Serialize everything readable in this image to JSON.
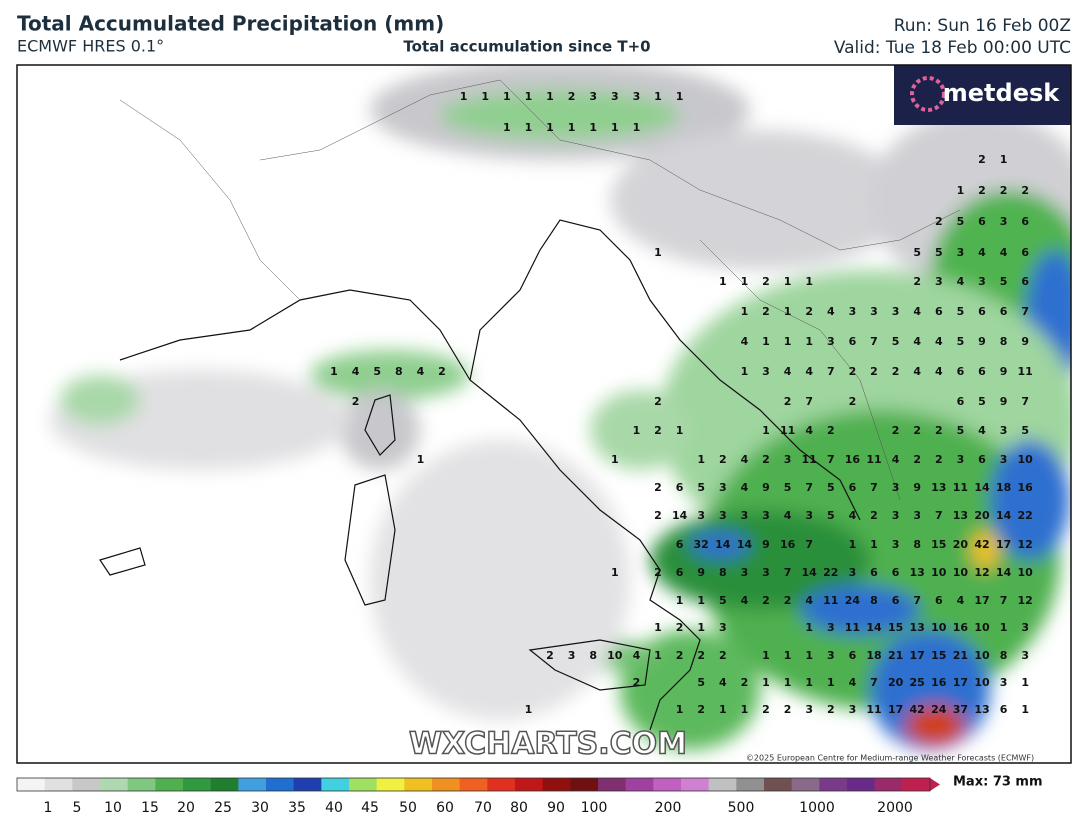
{
  "header": {
    "title": "Total Accumulated Precipitation (mm)",
    "model": "ECMWF HRES 0.1°",
    "subtitle": "Total accumulation since T+0",
    "run": "Run: Sun 16 Feb 00Z",
    "valid": "Valid: Tue 18 Feb 00:00 UTC"
  },
  "logo": "metdesk",
  "watermark": "WXCHARTS.COM",
  "copyright": "©2025 European Centre for Medium-range Weather Forecasts (ECMWF)",
  "max_label": "Max: 73 mm",
  "legend_ticks": [
    1,
    5,
    10,
    15,
    20,
    25,
    30,
    35,
    40,
    45,
    50,
    60,
    70,
    80,
    90,
    100,
    200,
    500,
    1000,
    2000
  ],
  "map_rows": [
    [
      null,
      null,
      null,
      null,
      null,
      null,
      1,
      1,
      1,
      1,
      1,
      2,
      3,
      3,
      3,
      1,
      1,
      null,
      null,
      null,
      null,
      null,
      null,
      null,
      null,
      null,
      null,
      null,
      null,
      null,
      null,
      null,
      null
    ],
    [
      null,
      null,
      null,
      null,
      null,
      null,
      null,
      null,
      1,
      1,
      1,
      1,
      1,
      1,
      1,
      null,
      null,
      null,
      null,
      null,
      null,
      null,
      null,
      null,
      null,
      null,
      null,
      null,
      null,
      null,
      null,
      null,
      null
    ],
    [
      null,
      null,
      null,
      null,
      null,
      null,
      null,
      null,
      null,
      null,
      null,
      null,
      null,
      null,
      null,
      null,
      null,
      null,
      null,
      null,
      null,
      null,
      null,
      null,
      null,
      null,
      null,
      null,
      null,
      null,
      2,
      1,
      null
    ],
    [
      null,
      null,
      null,
      null,
      null,
      null,
      null,
      null,
      null,
      null,
      null,
      null,
      null,
      null,
      null,
      null,
      null,
      null,
      null,
      null,
      null,
      null,
      null,
      null,
      null,
      null,
      null,
      null,
      null,
      1,
      2,
      2,
      2
    ],
    [
      null,
      null,
      null,
      null,
      null,
      null,
      null,
      null,
      null,
      null,
      null,
      null,
      null,
      null,
      null,
      null,
      null,
      null,
      null,
      null,
      null,
      null,
      null,
      null,
      null,
      null,
      null,
      null,
      2,
      5,
      6,
      3,
      6
    ],
    [
      null,
      null,
      null,
      null,
      null,
      null,
      null,
      null,
      null,
      null,
      null,
      null,
      null,
      null,
      null,
      1,
      null,
      null,
      null,
      null,
      null,
      null,
      null,
      null,
      null,
      null,
      null,
      5,
      5,
      3,
      4,
      4,
      6
    ],
    [
      null,
      null,
      null,
      null,
      null,
      null,
      null,
      null,
      null,
      null,
      null,
      null,
      null,
      null,
      null,
      null,
      null,
      null,
      1,
      1,
      2,
      1,
      1,
      null,
      null,
      null,
      null,
      2,
      3,
      4,
      3,
      5,
      6
    ],
    [
      null,
      null,
      null,
      null,
      null,
      null,
      null,
      null,
      null,
      null,
      null,
      null,
      null,
      null,
      null,
      null,
      null,
      null,
      null,
      1,
      2,
      1,
      2,
      4,
      3,
      3,
      3,
      4,
      6,
      5,
      6,
      6,
      7
    ],
    [
      null,
      null,
      null,
      null,
      null,
      null,
      null,
      null,
      null,
      null,
      null,
      null,
      null,
      null,
      null,
      null,
      null,
      null,
      null,
      4,
      1,
      1,
      1,
      3,
      6,
      7,
      5,
      4,
      4,
      5,
      9,
      8,
      9
    ],
    [
      1,
      4,
      5,
      8,
      4,
      2,
      null,
      null,
      null,
      null,
      null,
      null,
      null,
      null,
      null,
      null,
      null,
      null,
      null,
      1,
      3,
      4,
      4,
      7,
      2,
      2,
      2,
      4,
      4,
      6,
      6,
      9,
      11
    ],
    [
      null,
      2,
      null,
      null,
      null,
      null,
      null,
      null,
      null,
      null,
      null,
      null,
      null,
      null,
      null,
      2,
      null,
      null,
      null,
      null,
      null,
      2,
      7,
      null,
      2,
      null,
      null,
      null,
      null,
      6,
      5,
      9,
      7
    ],
    [
      null,
      null,
      null,
      null,
      null,
      null,
      null,
      null,
      null,
      null,
      null,
      null,
      null,
      null,
      1,
      2,
      1,
      null,
      null,
      null,
      1,
      11,
      4,
      2,
      null,
      null,
      2,
      2,
      2,
      5,
      4,
      3,
      5
    ],
    [
      null,
      null,
      null,
      null,
      1,
      null,
      null,
      null,
      null,
      null,
      null,
      null,
      null,
      1,
      null,
      null,
      null,
      1,
      2,
      4,
      2,
      3,
      11,
      7,
      16,
      11,
      4,
      2,
      2,
      3,
      6,
      3,
      10
    ],
    [
      null,
      null,
      null,
      null,
      null,
      null,
      null,
      null,
      null,
      null,
      null,
      null,
      null,
      null,
      null,
      2,
      6,
      5,
      3,
      4,
      9,
      5,
      7,
      5,
      6,
      7,
      3,
      9,
      13,
      11,
      14,
      18,
      16
    ],
    [
      null,
      null,
      null,
      null,
      null,
      null,
      null,
      null,
      null,
      null,
      null,
      null,
      null,
      null,
      null,
      2,
      14,
      3,
      3,
      3,
      3,
      4,
      3,
      5,
      4,
      2,
      3,
      3,
      7,
      13,
      20,
      14,
      22
    ],
    [
      null,
      null,
      null,
      null,
      null,
      null,
      null,
      null,
      null,
      null,
      null,
      null,
      null,
      null,
      null,
      null,
      6,
      32,
      14,
      14,
      9,
      16,
      7,
      null,
      1,
      1,
      3,
      8,
      15,
      20,
      42,
      17,
      12
    ],
    [
      null,
      null,
      null,
      null,
      null,
      null,
      null,
      null,
      null,
      null,
      null,
      null,
      null,
      1,
      null,
      2,
      6,
      9,
      8,
      3,
      3,
      7,
      14,
      22,
      3,
      6,
      6,
      13,
      10,
      10,
      12,
      14,
      10
    ],
    [
      null,
      null,
      null,
      null,
      null,
      null,
      null,
      null,
      null,
      null,
      null,
      null,
      null,
      null,
      null,
      null,
      1,
      1,
      5,
      4,
      2,
      2,
      4,
      11,
      24,
      8,
      6,
      7,
      6,
      4,
      17,
      7,
      12
    ],
    [
      null,
      null,
      null,
      null,
      null,
      null,
      null,
      null,
      null,
      null,
      null,
      null,
      null,
      null,
      null,
      1,
      2,
      1,
      3,
      null,
      null,
      null,
      1,
      3,
      11,
      14,
      15,
      13,
      10,
      16,
      10,
      1,
      3
    ],
    [
      null,
      null,
      null,
      null,
      null,
      null,
      null,
      null,
      null,
      null,
      2,
      3,
      8,
      10,
      4,
      1,
      2,
      2,
      2,
      null,
      1,
      1,
      1,
      3,
      6,
      18,
      21,
      17,
      15,
      21,
      10,
      8,
      3
    ],
    [
      null,
      null,
      null,
      null,
      null,
      null,
      null,
      null,
      null,
      null,
      null,
      null,
      null,
      null,
      2,
      null,
      null,
      5,
      4,
      2,
      1,
      1,
      1,
      1,
      4,
      7,
      20,
      25,
      16,
      17,
      10,
      3,
      1
    ],
    [
      null,
      null,
      null,
      null,
      null,
      null,
      null,
      null,
      null,
      1,
      null,
      null,
      null,
      null,
      null,
      null,
      1,
      2,
      1,
      1,
      2,
      2,
      3,
      2,
      3,
      11,
      17,
      42,
      24,
      37,
      13,
      6,
      1
    ]
  ]
}
